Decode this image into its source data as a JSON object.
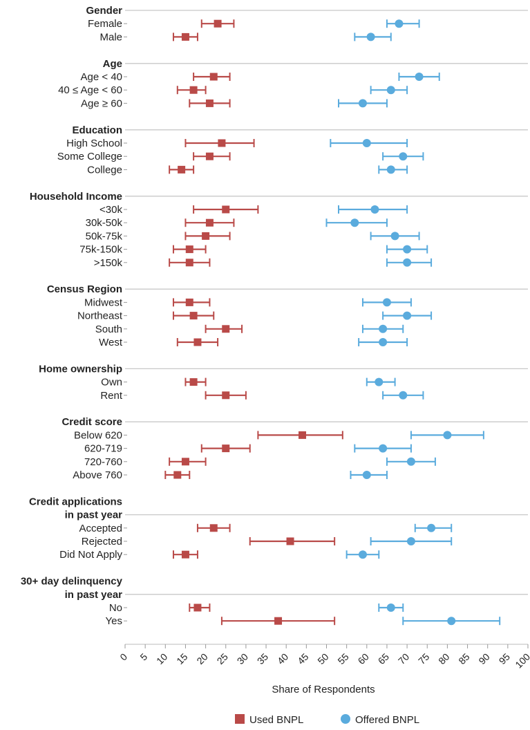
{
  "chart_data": {
    "type": "dot-interval",
    "xlabel": "Share of Respondents",
    "xlim": [
      0,
      100
    ],
    "xticks": [
      "0",
      "5",
      "10",
      "15",
      "20",
      "25",
      "30",
      "35",
      "40",
      "45",
      "50",
      "55",
      "60",
      "65",
      "70",
      "75",
      "80",
      "85",
      "90",
      "95",
      "100"
    ],
    "grid": false,
    "legend_position": "bottom",
    "series": [
      {
        "name": "Used BNPL",
        "marker": "square",
        "color": "#b94a48"
      },
      {
        "name": "Offered BNPL",
        "marker": "circle",
        "color": "#5aabdd"
      }
    ],
    "groups": [
      {
        "title_lines": [
          "Gender"
        ],
        "rows": [
          {
            "label": "Female",
            "used": [
              19,
              23,
              27
            ],
            "offered": [
              65,
              68,
              73
            ]
          },
          {
            "label": "Male",
            "used": [
              12,
              15,
              18
            ],
            "offered": [
              57,
              61,
              66
            ]
          }
        ]
      },
      {
        "title_lines": [
          "Age"
        ],
        "rows": [
          {
            "label": "Age < 40",
            "used": [
              17,
              22,
              26
            ],
            "offered": [
              68,
              73,
              78
            ]
          },
          {
            "label": "40 ≤ Age < 60",
            "used": [
              13,
              17,
              20
            ],
            "offered": [
              61,
              66,
              70
            ]
          },
          {
            "label": "Age ≥ 60",
            "used": [
              16,
              21,
              26
            ],
            "offered": [
              53,
              59,
              65
            ]
          }
        ]
      },
      {
        "title_lines": [
          "Education"
        ],
        "rows": [
          {
            "label": "High School",
            "used": [
              15,
              24,
              32
            ],
            "offered": [
              51,
              60,
              70
            ]
          },
          {
            "label": "Some College",
            "used": [
              17,
              21,
              26
            ],
            "offered": [
              64,
              69,
              74
            ]
          },
          {
            "label": "College",
            "used": [
              11,
              14,
              17
            ],
            "offered": [
              63,
              66,
              70
            ]
          }
        ]
      },
      {
        "title_lines": [
          "Household Income"
        ],
        "rows": [
          {
            "label": "<30k",
            "used": [
              17,
              25,
              33
            ],
            "offered": [
              53,
              62,
              70
            ]
          },
          {
            "label": "30k-50k",
            "used": [
              15,
              21,
              27
            ],
            "offered": [
              50,
              57,
              65
            ]
          },
          {
            "label": "50k-75k",
            "used": [
              15,
              20,
              26
            ],
            "offered": [
              61,
              67,
              73
            ]
          },
          {
            "label": "75k-150k",
            "used": [
              12,
              16,
              20
            ],
            "offered": [
              65,
              70,
              75
            ]
          },
          {
            "label": ">150k",
            "used": [
              11,
              16,
              21
            ],
            "offered": [
              65,
              70,
              76
            ]
          }
        ]
      },
      {
        "title_lines": [
          "Census Region"
        ],
        "rows": [
          {
            "label": "Midwest",
            "used": [
              12,
              16,
              21
            ],
            "offered": [
              59,
              65,
              71
            ]
          },
          {
            "label": "Northeast",
            "used": [
              12,
              17,
              22
            ],
            "offered": [
              64,
              70,
              76
            ]
          },
          {
            "label": "South",
            "used": [
              20,
              25,
              29
            ],
            "offered": [
              59,
              64,
              69
            ]
          },
          {
            "label": "West",
            "used": [
              13,
              18,
              23
            ],
            "offered": [
              58,
              64,
              70
            ]
          }
        ]
      },
      {
        "title_lines": [
          "Home ownership"
        ],
        "rows": [
          {
            "label": "Own",
            "used": [
              15,
              17,
              20
            ],
            "offered": [
              60,
              63,
              67
            ]
          },
          {
            "label": "Rent",
            "used": [
              20,
              25,
              30
            ],
            "offered": [
              64,
              69,
              74
            ]
          }
        ]
      },
      {
        "title_lines": [
          "Credit score"
        ],
        "rows": [
          {
            "label": "Below 620",
            "used": [
              33,
              44,
              54
            ],
            "offered": [
              71,
              80,
              89
            ]
          },
          {
            "label": "620-719",
            "used": [
              19,
              25,
              31
            ],
            "offered": [
              57,
              64,
              71
            ]
          },
          {
            "label": "720-760",
            "used": [
              11,
              15,
              20
            ],
            "offered": [
              65,
              71,
              77
            ]
          },
          {
            "label": "Above 760",
            "used": [
              10,
              13,
              16
            ],
            "offered": [
              56,
              60,
              65
            ]
          }
        ]
      },
      {
        "title_lines": [
          "Credit applications",
          "in past year"
        ],
        "rows": [
          {
            "label": "Accepted",
            "used": [
              18,
              22,
              26
            ],
            "offered": [
              72,
              76,
              81
            ]
          },
          {
            "label": "Rejected",
            "used": [
              31,
              41,
              52
            ],
            "offered": [
              61,
              71,
              81
            ]
          },
          {
            "label": "Did Not Apply",
            "used": [
              12,
              15,
              18
            ],
            "offered": [
              55,
              59,
              63
            ]
          }
        ]
      },
      {
        "title_lines": [
          "30+ day delinquency",
          "in past year"
        ],
        "rows": [
          {
            "label": "No",
            "used": [
              16,
              18,
              21
            ],
            "offered": [
              63,
              66,
              69
            ]
          },
          {
            "label": "Yes",
            "used": [
              24,
              38,
              52
            ],
            "offered": [
              69,
              81,
              93
            ]
          }
        ]
      }
    ]
  }
}
